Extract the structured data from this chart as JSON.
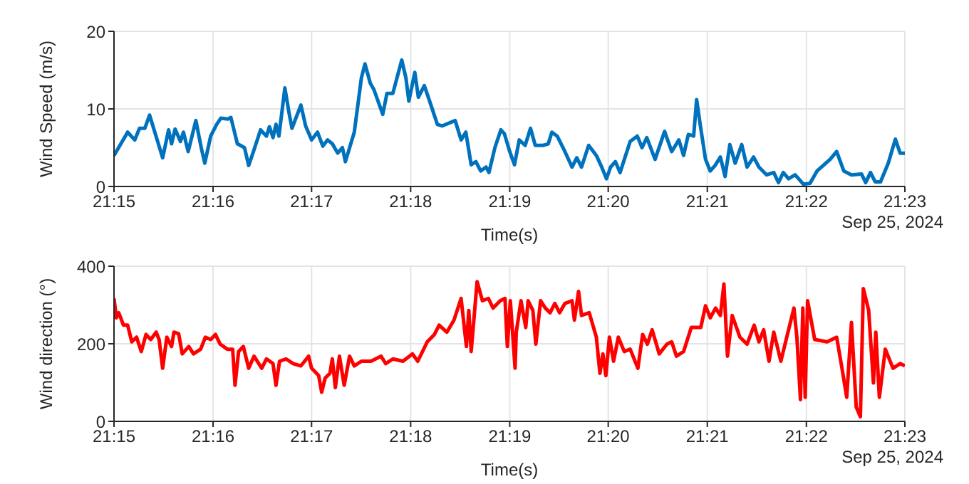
{
  "chart_data": [
    {
      "type": "line",
      "xlabel": "Time(s)",
      "ylabel": "Wind Speed (m/s)",
      "annotations": [
        "Sep 25, 2024"
      ],
      "grid": true,
      "xlim": [
        21.25,
        21.3833
      ],
      "xticks": [
        {
          "value": 21.25,
          "label": "21:15"
        },
        {
          "value": 21.2667,
          "label": "21:16"
        },
        {
          "value": 21.2833,
          "label": "21:17"
        },
        {
          "value": 21.3,
          "label": "21:18"
        },
        {
          "value": 21.3167,
          "label": "21:19"
        },
        {
          "value": 21.3333,
          "label": "21:20"
        },
        {
          "value": 21.35,
          "label": "21:21"
        },
        {
          "value": 21.3667,
          "label": "21:22"
        },
        {
          "value": 21.3833,
          "label": "21:23"
        }
      ],
      "ylim": [
        0,
        20
      ],
      "yticks": [
        0,
        10,
        20
      ],
      "series": [
        {
          "color": "#0072bd",
          "x": [
            21.25,
            21.2523,
            21.2535,
            21.2543,
            21.2552,
            21.256,
            21.2582,
            21.2592,
            21.2597,
            21.2603,
            21.2612,
            21.2617,
            21.2625,
            21.2638,
            21.2647,
            21.2653,
            21.2663,
            21.2673,
            21.268,
            21.2692,
            21.2697,
            21.2708,
            21.272,
            21.2727,
            21.2735,
            21.2747,
            21.2757,
            21.2762,
            21.2768,
            21.2773,
            21.2778,
            21.2788,
            21.2795,
            21.28,
            21.2815,
            21.2823,
            21.2833,
            21.2843,
            21.2852,
            21.286,
            21.2868,
            21.2877,
            21.2885,
            21.289,
            21.2905,
            21.2917,
            21.2923,
            21.2932,
            21.2938,
            21.2953,
            21.296,
            21.297,
            21.2985,
            21.2992,
            21.2997,
            21.3007,
            21.3013,
            21.3023,
            21.3032,
            21.3045,
            21.3053,
            21.3075,
            21.3085,
            21.3093,
            21.3102,
            21.311,
            21.3118,
            21.3127,
            21.3132,
            21.3142,
            21.3152,
            21.3158,
            21.3167,
            21.3175,
            21.3183,
            21.3193,
            21.3202,
            21.321,
            21.3223,
            21.3232,
            21.3238,
            21.3247,
            21.326,
            21.3272,
            21.328,
            21.3288,
            21.33,
            21.3313,
            21.3322,
            21.333,
            21.3337,
            21.3345,
            21.3353,
            21.337,
            21.3382,
            21.339,
            21.3398,
            21.3412,
            21.3428,
            21.344,
            21.3452,
            21.346,
            21.3468,
            21.3477,
            21.3482,
            21.3488,
            21.3497,
            21.3505,
            21.3513,
            21.3522,
            21.353,
            21.3538,
            21.3547,
            21.3558,
            21.3567,
            21.3578,
            21.3587,
            21.36,
            21.3612,
            21.362,
            21.3628,
            21.3637,
            21.3648,
            21.3662,
            21.3673,
            21.3685,
            21.3707,
            21.3718,
            21.373,
            21.3743,
            21.376,
            21.3767,
            21.3775,
            21.3783,
            21.3792,
            21.3805,
            21.3817,
            21.3825,
            21.3833
          ],
          "values": [
            4.0,
            7.0,
            6.0,
            7.5,
            7.5,
            9.2,
            3.7,
            7.3,
            5.5,
            7.4,
            5.8,
            7.0,
            4.5,
            8.5,
            5.0,
            3.0,
            6.5,
            8.0,
            8.8,
            8.7,
            8.9,
            5.5,
            5.0,
            2.7,
            4.5,
            7.3,
            6.5,
            7.7,
            6.3,
            8.0,
            6.5,
            12.7,
            9.5,
            7.5,
            10.5,
            7.8,
            6.0,
            7.0,
            5.2,
            6.0,
            5.5,
            4.3,
            5.0,
            3.2,
            7.0,
            14.0,
            15.8,
            13.3,
            12.5,
            9.3,
            12.0,
            12.0,
            16.3,
            14.0,
            11.0,
            14.7,
            11.5,
            13.0,
            11.0,
            8.0,
            7.8,
            8.5,
            6.0,
            7.0,
            2.8,
            3.2,
            2.0,
            2.5,
            1.8,
            5.0,
            7.3,
            6.8,
            4.5,
            2.8,
            6.0,
            5.3,
            7.5,
            5.3,
            5.3,
            5.5,
            7.0,
            6.5,
            4.5,
            2.5,
            3.7,
            2.5,
            5.3,
            4.0,
            2.5,
            1.0,
            2.5,
            3.2,
            1.8,
            5.8,
            6.5,
            5.0,
            6.3,
            3.5,
            7.1,
            4.5,
            6.0,
            4.0,
            6.7,
            6.5,
            11.2,
            8.0,
            3.5,
            2.0,
            2.7,
            3.8,
            1.3,
            5.4,
            3.0,
            5.4,
            2.5,
            3.8,
            2.5,
            1.5,
            1.8,
            0.5,
            1.8,
            1.0,
            1.5,
            0.3,
            0.4,
            2.0,
            3.5,
            4.5,
            2.0,
            1.5,
            1.6,
            0.5,
            1.8,
            0.6,
            0.6,
            3.0,
            6.1,
            4.3,
            4.3
          ]
        }
      ]
    },
    {
      "type": "line",
      "xlabel": "Time(s)",
      "ylabel": "Wind direction (°)",
      "annotations": [
        "Sep 25, 2024"
      ],
      "grid": true,
      "xlim": [
        21.25,
        21.3833
      ],
      "xticks": [
        {
          "value": 21.25,
          "label": "21:15"
        },
        {
          "value": 21.2667,
          "label": "21:16"
        },
        {
          "value": 21.2833,
          "label": "21:17"
        },
        {
          "value": 21.3,
          "label": "21:18"
        },
        {
          "value": 21.3167,
          "label": "21:19"
        },
        {
          "value": 21.3333,
          "label": "21:20"
        },
        {
          "value": 21.35,
          "label": "21:21"
        },
        {
          "value": 21.3667,
          "label": "21:22"
        },
        {
          "value": 21.3833,
          "label": "21:23"
        }
      ],
      "ylim": [
        0,
        400
      ],
      "yticks": [
        0,
        200,
        400
      ],
      "series": [
        {
          "color": "#ff0000",
          "x": [
            21.25,
            21.2504,
            21.2508,
            21.2516,
            21.2523,
            21.253,
            21.2538,
            21.2546,
            21.2554,
            21.2562,
            21.2571,
            21.2576,
            21.2582,
            21.2589,
            21.2597,
            21.2601,
            21.2609,
            21.2615,
            21.2626,
            21.2634,
            21.2646,
            21.2654,
            21.2663,
            21.2671,
            21.2679,
            21.2691,
            21.27,
            21.2704,
            21.271,
            21.2718,
            21.2727,
            21.2736,
            21.2749,
            21.2757,
            21.2768,
            21.2773,
            21.2779,
            21.279,
            21.2802,
            21.2815,
            21.2828,
            21.2833,
            21.2845,
            21.285,
            21.2856,
            21.2864,
            21.2868,
            21.2873,
            21.288,
            21.2888,
            21.2897,
            21.2905,
            21.2917,
            21.2933,
            21.295,
            21.2958,
            21.297,
            21.2987,
            21.3003,
            21.3012,
            21.3028,
            21.304,
            21.3048,
            21.3061,
            21.3073,
            21.3085,
            21.3094,
            21.3098,
            21.3102,
            21.3112,
            21.3121,
            21.3131,
            21.3139,
            21.3151,
            21.3159,
            21.3163,
            21.3168,
            21.3176,
            21.3178,
            21.3186,
            21.3194,
            21.3198,
            21.3206,
            21.3211,
            21.3219,
            21.3227,
            21.3235,
            21.3243,
            21.3251,
            21.326,
            21.3272,
            21.3276,
            21.3283,
            21.3288,
            21.3301,
            21.3313,
            21.3319,
            21.3324,
            21.3329,
            21.3335,
            21.3342,
            21.335,
            21.336,
            21.337,
            21.3383,
            21.3391,
            21.3399,
            21.3407,
            21.3419,
            21.3432,
            21.344,
            21.3448,
            21.346,
            21.3473,
            21.3489,
            21.3497,
            21.3505,
            21.3514,
            21.3522,
            21.3528,
            21.3534,
            21.3542,
            21.3555,
            21.3567,
            21.3579,
            21.3587,
            21.3595,
            21.3604,
            21.3612,
            21.3624,
            21.3636,
            21.3646,
            21.3651,
            21.3657,
            21.3661,
            21.3665,
            21.3669,
            21.3681,
            21.3702,
            21.3718,
            21.3727,
            21.3735,
            21.3743,
            21.3751,
            21.3758,
            21.3763,
            21.3772,
            21.378,
            21.3784,
            21.379,
            21.38,
            21.3813,
            21.3825,
            21.3833
          ],
          "values": [
            317,
            267,
            280,
            248,
            248,
            205,
            217,
            180,
            224,
            211,
            230,
            211,
            137,
            217,
            193,
            230,
            226,
            174,
            193,
            174,
            186,
            217,
            211,
            224,
            199,
            186,
            186,
            93,
            180,
            193,
            137,
            168,
            137,
            161,
            149,
            93,
            155,
            161,
            149,
            143,
            168,
            137,
            118,
            75,
            112,
            124,
            161,
            87,
            168,
            93,
            168,
            143,
            155,
            155,
            168,
            149,
            161,
            155,
            174,
            155,
            205,
            224,
            248,
            230,
            261,
            317,
            193,
            286,
            180,
            360,
            311,
            317,
            292,
            311,
            317,
            193,
            311,
            137,
            230,
            311,
            242,
            311,
            286,
            199,
            311,
            292,
            280,
            304,
            280,
            304,
            311,
            261,
            335,
            273,
            280,
            217,
            124,
            174,
            118,
            217,
            155,
            217,
            180,
            186,
            137,
            224,
            199,
            236,
            174,
            199,
            205,
            168,
            180,
            242,
            242,
            298,
            267,
            292,
            273,
            354,
            168,
            273,
            217,
            199,
            248,
            205,
            236,
            155,
            230,
            155,
            230,
            292,
            217,
            56,
            292,
            62,
            311,
            211,
            205,
            217,
            137,
            62,
            255,
            37,
            12,
            342,
            286,
            99,
            230,
            62,
            186,
            137,
            149,
            143
          ]
        }
      ]
    }
  ]
}
